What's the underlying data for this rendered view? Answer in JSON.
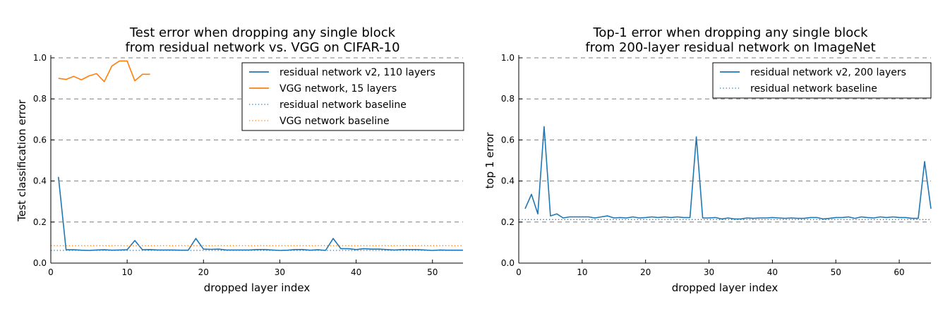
{
  "colors": {
    "residual": "#1f77b4",
    "vgg": "#ff7f0e",
    "grid": "#7f7f7f",
    "axis": "#000000"
  },
  "chart_data": [
    {
      "type": "line",
      "title": "Test error when dropping any single block",
      "subtitle": "from residual network vs. VGG on CIFAR-10",
      "xlabel": "dropped layer index",
      "ylabel": "Test classification error",
      "xlim": [
        0,
        54
      ],
      "ylim": [
        0.0,
        1.0
      ],
      "xticks": [
        0,
        10,
        20,
        30,
        40,
        50
      ],
      "yticks": [
        0.0,
        0.2,
        0.4,
        0.6,
        0.8,
        1.0
      ],
      "xtick_labels": [
        "0",
        "10",
        "20",
        "30",
        "40",
        "50"
      ],
      "ytick_labels": [
        "0.0",
        "0.2",
        "0.4",
        "0.6",
        "0.8",
        "1.0"
      ],
      "grid": "horizontal dashed",
      "legend_position": "upper-right",
      "series": [
        {
          "name": "residual network v2, 110 layers",
          "style": "solid",
          "color_key": "residual",
          "x": [
            1,
            2,
            3,
            4,
            5,
            6,
            7,
            8,
            9,
            10,
            11,
            12,
            13,
            14,
            15,
            16,
            17,
            18,
            19,
            20,
            21,
            22,
            23,
            24,
            25,
            26,
            27,
            28,
            29,
            30,
            31,
            32,
            33,
            34,
            35,
            36,
            37,
            38,
            39,
            40,
            41,
            42,
            43,
            44,
            45,
            46,
            47,
            48,
            49,
            50,
            51,
            52,
            53,
            54
          ],
          "y": [
            0.42,
            0.065,
            0.065,
            0.063,
            0.062,
            0.064,
            0.065,
            0.063,
            0.064,
            0.065,
            0.11,
            0.065,
            0.066,
            0.064,
            0.064,
            0.064,
            0.063,
            0.063,
            0.12,
            0.068,
            0.067,
            0.068,
            0.064,
            0.064,
            0.064,
            0.064,
            0.066,
            0.066,
            0.064,
            0.062,
            0.063,
            0.066,
            0.066,
            0.063,
            0.065,
            0.062,
            0.12,
            0.07,
            0.07,
            0.066,
            0.07,
            0.068,
            0.068,
            0.066,
            0.064,
            0.066,
            0.066,
            0.066,
            0.064,
            0.062,
            0.064,
            0.063,
            0.063,
            0.063
          ]
        },
        {
          "name": "VGG network, 15 layers",
          "style": "solid",
          "color_key": "vgg",
          "x": [
            1,
            2,
            3,
            4,
            5,
            6,
            7,
            8,
            9,
            10,
            11,
            12,
            13
          ],
          "y": [
            0.9,
            0.895,
            0.91,
            0.893,
            0.912,
            0.923,
            0.884,
            0.96,
            0.985,
            0.985,
            0.888,
            0.92,
            0.92
          ]
        },
        {
          "name": "residual network baseline",
          "style": "dotted",
          "color_key": "residual",
          "x": [
            0,
            54
          ],
          "y": [
            0.062,
            0.062
          ]
        },
        {
          "name": "VGG network baseline",
          "style": "dotted",
          "color_key": "vgg",
          "x": [
            0,
            54
          ],
          "y": [
            0.085,
            0.085
          ]
        }
      ]
    },
    {
      "type": "line",
      "title": "Top-1 error when dropping any single block",
      "subtitle": "from 200-layer residual network on ImageNet",
      "xlabel": "dropped layer index",
      "ylabel": "top 1 error",
      "xlim": [
        0,
        65
      ],
      "ylim": [
        0.0,
        1.0
      ],
      "xticks": [
        0,
        10,
        20,
        30,
        40,
        50,
        60
      ],
      "yticks": [
        0.0,
        0.2,
        0.4,
        0.6,
        0.8,
        1.0
      ],
      "xtick_labels": [
        "0",
        "10",
        "20",
        "30",
        "40",
        "50",
        "60"
      ],
      "ytick_labels": [
        "0.0",
        "0.2",
        "0.4",
        "0.6",
        "0.8",
        "1.0"
      ],
      "grid": "horizontal dashed",
      "legend_position": "upper-right",
      "series": [
        {
          "name": "residual network v2, 200 layers",
          "style": "solid",
          "color_key": "residual",
          "x": [
            1,
            2,
            3,
            4,
            5,
            6,
            7,
            8,
            9,
            10,
            11,
            12,
            13,
            14,
            15,
            16,
            17,
            18,
            19,
            20,
            21,
            22,
            23,
            24,
            25,
            26,
            27,
            28,
            29,
            30,
            31,
            32,
            33,
            34,
            35,
            36,
            37,
            38,
            39,
            40,
            41,
            42,
            43,
            44,
            45,
            46,
            47,
            48,
            49,
            50,
            51,
            52,
            53,
            54,
            55,
            56,
            57,
            58,
            59,
            60,
            61,
            62,
            63,
            64,
            65
          ],
          "y": [
            0.265,
            0.335,
            0.24,
            0.665,
            0.23,
            0.24,
            0.22,
            0.225,
            0.225,
            0.225,
            0.225,
            0.22,
            0.225,
            0.23,
            0.22,
            0.222,
            0.22,
            0.225,
            0.22,
            0.222,
            0.225,
            0.222,
            0.225,
            0.222,
            0.225,
            0.222,
            0.222,
            0.615,
            0.22,
            0.22,
            0.222,
            0.215,
            0.22,
            0.215,
            0.215,
            0.22,
            0.218,
            0.22,
            0.22,
            0.222,
            0.22,
            0.218,
            0.22,
            0.218,
            0.218,
            0.222,
            0.222,
            0.215,
            0.218,
            0.222,
            0.222,
            0.225,
            0.218,
            0.225,
            0.222,
            0.22,
            0.225,
            0.222,
            0.225,
            0.222,
            0.222,
            0.218,
            0.218,
            0.495,
            0.265
          ]
        },
        {
          "name": "residual network baseline",
          "style": "dotted",
          "color_key": "residual",
          "x": [
            0,
            65
          ],
          "y": [
            0.212,
            0.212
          ]
        }
      ]
    }
  ]
}
